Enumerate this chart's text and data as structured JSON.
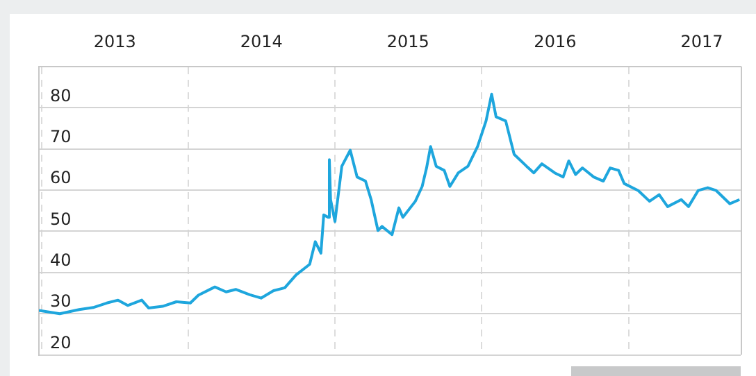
{
  "chart_data": {
    "type": "line",
    "x": [
      "2012-12-25",
      "2013-02-15",
      "2013-04-04",
      "2013-05-09",
      "2013-06-12",
      "2013-07-10",
      "2013-08-03",
      "2013-09-07",
      "2013-09-24",
      "2013-10-29",
      "2013-12-02",
      "2014-01-06",
      "2014-01-26",
      "2014-03-08",
      "2014-04-05",
      "2014-04-29",
      "2014-06-03",
      "2014-07-01",
      "2014-08-01",
      "2014-08-29",
      "2014-09-26",
      "2014-10-30",
      "2014-11-13",
      "2014-11-27",
      "2014-12-04",
      "2014-12-15",
      "2014-12-18",
      "2014-12-21",
      "2015-01-01",
      "2015-01-18",
      "2015-02-08",
      "2015-02-25",
      "2015-03-18",
      "2015-04-01",
      "2015-04-18",
      "2015-04-28",
      "2015-05-23",
      "2015-06-09",
      "2015-06-19",
      "2015-07-20",
      "2015-08-06",
      "2015-08-17",
      "2015-08-27",
      "2015-09-10",
      "2015-09-30",
      "2015-10-14",
      "2015-11-04",
      "2015-11-28",
      "2015-12-22",
      "2016-01-12",
      "2016-01-26",
      "2016-02-06",
      "2016-03-01",
      "2016-03-22",
      "2016-04-22",
      "2016-05-10",
      "2016-05-30",
      "2016-07-01",
      "2016-07-22",
      "2016-08-05",
      "2016-08-22",
      "2016-09-08",
      "2016-10-06",
      "2016-10-30",
      "2016-11-16",
      "2016-12-07",
      "2016-12-21",
      "2017-01-25",
      "2017-02-22",
      "2017-03-18",
      "2017-04-08",
      "2017-05-12",
      "2017-05-30",
      "2017-06-23",
      "2017-07-17",
      "2017-08-07",
      "2017-09-10",
      "2017-10-04"
    ],
    "series": [
      {
        "color": "#1ea6dd",
        "values": [
          30.8,
          30.0,
          31.0,
          31.5,
          32.6,
          33.3,
          32.0,
          33.3,
          31.4,
          31.8,
          32.9,
          32.6,
          34.5,
          36.5,
          35.3,
          35.9,
          34.6,
          33.8,
          35.6,
          36.3,
          39.4,
          42.0,
          47.5,
          44.7,
          54.0,
          53.4,
          67.4,
          57.7,
          52.4,
          65.8,
          69.7,
          63.2,
          62.2,
          57.7,
          50.2,
          51.2,
          49.2,
          55.7,
          53.4,
          57.3,
          60.9,
          65.4,
          70.6,
          65.8,
          64.8,
          60.9,
          64.2,
          65.8,
          70.6,
          76.8,
          83.3,
          77.8,
          76.8,
          68.7,
          65.8,
          64.2,
          66.4,
          64.2,
          63.2,
          67.1,
          63.8,
          65.4,
          63.2,
          62.2,
          65.4,
          64.8,
          61.6,
          59.9,
          57.3,
          58.9,
          56.0,
          57.7,
          56.0,
          59.9,
          60.6,
          59.9,
          56.7,
          57.7
        ]
      }
    ],
    "xlim": [
      "2012-12-25",
      "2017-10-07"
    ],
    "xticks": [
      {
        "value": "2013-01-01",
        "label": null
      },
      {
        "value": "2013-07-02",
        "label": "2013"
      },
      {
        "value": "2014-01-01",
        "label": null
      },
      {
        "value": "2014-07-02",
        "label": "2014"
      },
      {
        "value": "2015-01-01",
        "label": null
      },
      {
        "value": "2015-07-02",
        "label": "2015"
      },
      {
        "value": "2016-01-01",
        "label": null
      },
      {
        "value": "2016-07-02",
        "label": "2016"
      },
      {
        "value": "2017-01-01",
        "label": null
      },
      {
        "value": "2017-07-02",
        "label": "2017"
      }
    ],
    "ylim": [
      20,
      90
    ],
    "yticks": [
      20,
      30,
      40,
      50,
      60,
      70,
      80
    ],
    "grid": true
  }
}
